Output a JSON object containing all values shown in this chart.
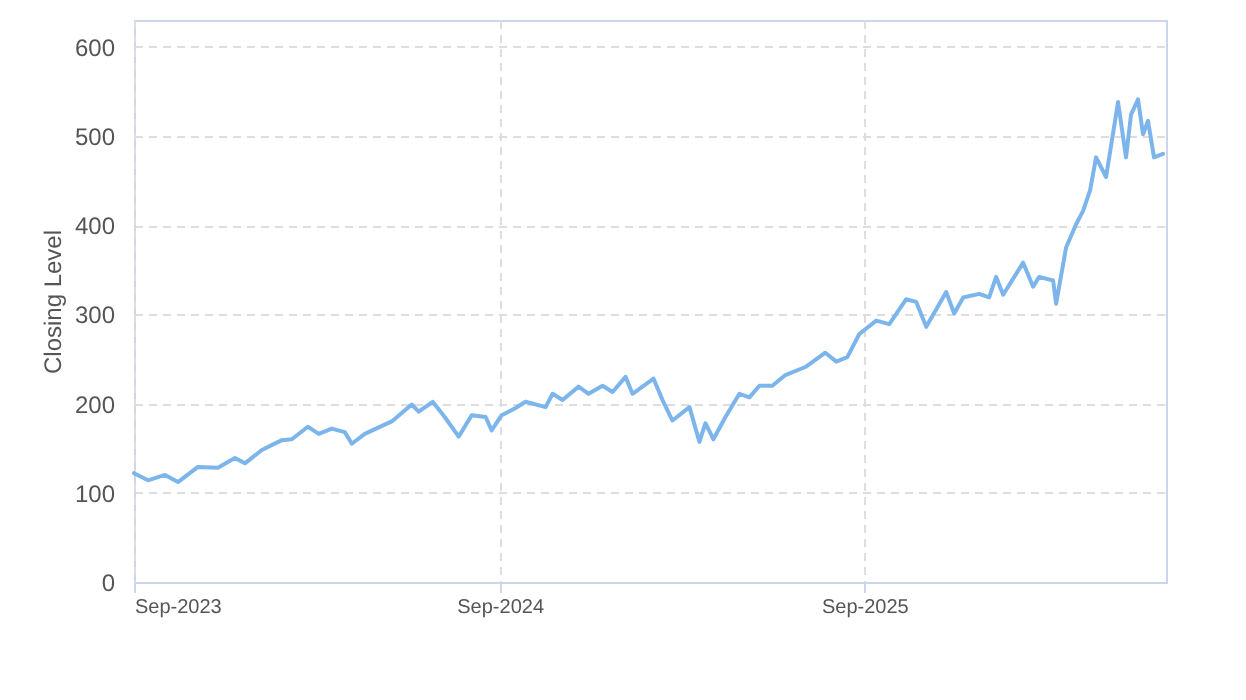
{
  "chart_data": {
    "type": "line",
    "ylabel": "Closing Level",
    "x": [
      "2023-09-01",
      "2023-09-15",
      "2023-10-02",
      "2023-10-15",
      "2023-11-04",
      "2023-11-24",
      "2023-12-11",
      "2023-12-21",
      "2024-01-07",
      "2024-01-27",
      "2024-02-06",
      "2024-02-22",
      "2024-03-04",
      "2024-03-17",
      "2024-03-30",
      "2024-04-06",
      "2024-04-19",
      "2024-05-16",
      "2024-06-05",
      "2024-06-12",
      "2024-06-26",
      "2024-07-08",
      "2024-07-22",
      "2024-08-04",
      "2024-08-18",
      "2024-08-24",
      "2024-09-03",
      "2024-09-17",
      "2024-09-27",
      "2024-10-17",
      "2024-10-24",
      "2024-11-03",
      "2024-11-19",
      "2024-11-29",
      "2024-12-13",
      "2024-12-23",
      "2025-01-05",
      "2025-01-12",
      "2025-02-02",
      "2025-02-11",
      "2025-02-21",
      "2025-03-10",
      "2025-03-20",
      "2025-03-26",
      "2025-04-03",
      "2025-04-15",
      "2025-04-29",
      "2025-05-09",
      "2025-05-19",
      "2025-06-01",
      "2025-06-14",
      "2025-07-04",
      "2025-07-24",
      "2025-08-04",
      "2025-08-15",
      "2025-08-27",
      "2025-09-13",
      "2025-09-26",
      "2025-10-13",
      "2025-10-23",
      "2025-11-02",
      "2025-11-22",
      "2025-11-30",
      "2025-12-09",
      "2025-12-25",
      "2026-01-04",
      "2026-01-11",
      "2026-01-18",
      "2026-02-07",
      "2026-02-17",
      "2026-02-23",
      "2026-03-09",
      "2026-03-12",
      "2026-03-22",
      "2026-04-01",
      "2026-04-08",
      "2026-04-15",
      "2026-04-21",
      "2026-05-01",
      "2026-05-13",
      "2026-05-21",
      "2026-05-26",
      "2026-06-02",
      "2026-06-07",
      "2026-06-12",
      "2026-06-18",
      "2026-06-27"
    ],
    "series": [
      {
        "color": "#7cb5ec",
        "values": [
          122,
          114,
          120,
          112,
          129,
          128,
          139,
          133,
          148,
          159,
          160,
          174,
          166,
          172,
          168,
          155,
          166,
          180,
          199,
          191,
          202,
          185,
          163,
          187,
          185,
          170,
          187,
          195,
          202,
          196,
          211,
          204,
          219,
          211,
          220,
          213,
          230,
          211,
          228,
          204,
          181,
          196,
          157,
          178,
          160,
          185,
          211,
          207,
          220,
          220,
          232,
          241,
          257,
          247,
          252,
          278,
          293,
          289,
          317,
          314,
          286,
          325,
          301,
          319,
          323,
          319,
          342,
          322,
          358,
          331,
          342,
          338,
          312,
          375,
          401,
          416,
          439,
          476,
          454,
          538,
          476,
          524,
          541,
          502,
          517,
          476,
          480
        ]
      }
    ],
    "xlim": [
      "2023-09-01",
      "2026-06-30"
    ],
    "xticks": [
      {
        "value": "2023-09-01",
        "label": "Sep-2023"
      },
      {
        "value": "2024-09-01",
        "label": "Sep-2024"
      },
      {
        "value": "2025-09-01",
        "label": "Sep-2025"
      }
    ],
    "ylim": [
      0,
      630
    ],
    "yticks": [
      0,
      100,
      200,
      300,
      400,
      500,
      600
    ],
    "grid": true,
    "marker": "none",
    "line_style": "solid"
  }
}
